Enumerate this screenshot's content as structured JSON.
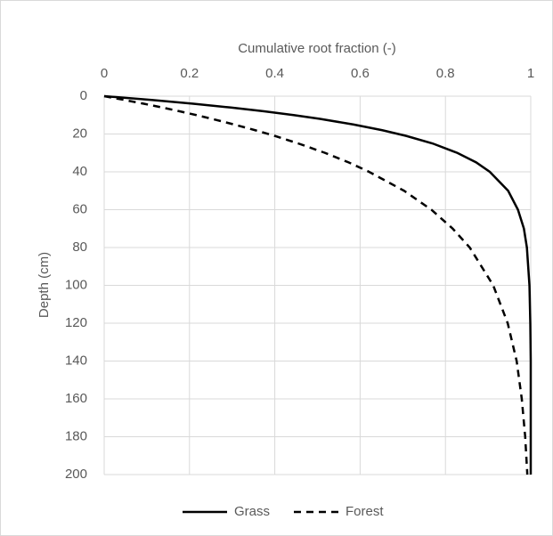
{
  "chart_data": {
    "type": "line",
    "title": "Cumulative root fraction (-)",
    "y_label": "Depth (cm)",
    "x_axis_position": "top",
    "y_inverted": true,
    "x": [
      0,
      2,
      4,
      6,
      8,
      10,
      12,
      15,
      18,
      21,
      25,
      30,
      35,
      40,
      50,
      60,
      70,
      80,
      100,
      120,
      140,
      160,
      180,
      200
    ],
    "series": [
      {
        "name": "Grass",
        "color": "#000000",
        "dash": false,
        "values": [
          0,
          0.111,
          0.209,
          0.297,
          0.375,
          0.444,
          0.506,
          0.585,
          0.652,
          0.708,
          0.77,
          0.828,
          0.872,
          0.904,
          0.947,
          0.97,
          0.984,
          0.991,
          0.997,
          0.999,
          1,
          1,
          1,
          1
        ]
      },
      {
        "name": "Forest",
        "color": "#000000",
        "dash": true,
        "values": [
          0,
          0.047,
          0.093,
          0.136,
          0.177,
          0.216,
          0.253,
          0.305,
          0.354,
          0.4,
          0.455,
          0.518,
          0.573,
          0.621,
          0.703,
          0.767,
          0.817,
          0.857,
          0.912,
          0.946,
          0.967,
          0.979,
          0.987,
          0.992
        ]
      }
    ],
    "xlim": [
      0,
      1
    ],
    "xticks": [
      0,
      0.2,
      0.4,
      0.6,
      0.8,
      1
    ],
    "ylim": [
      0,
      200
    ],
    "yticks": [
      0,
      20,
      40,
      60,
      80,
      100,
      120,
      140,
      160,
      180,
      200
    ],
    "grid": true,
    "legend": "bottom"
  }
}
